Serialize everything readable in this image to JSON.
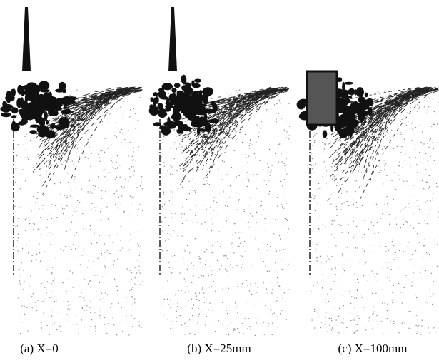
{
  "panels": [
    {
      "caption": "(a) X=0"
    },
    {
      "caption": "(b) X=25mm"
    },
    {
      "caption": "(c) X=100mm"
    }
  ]
}
